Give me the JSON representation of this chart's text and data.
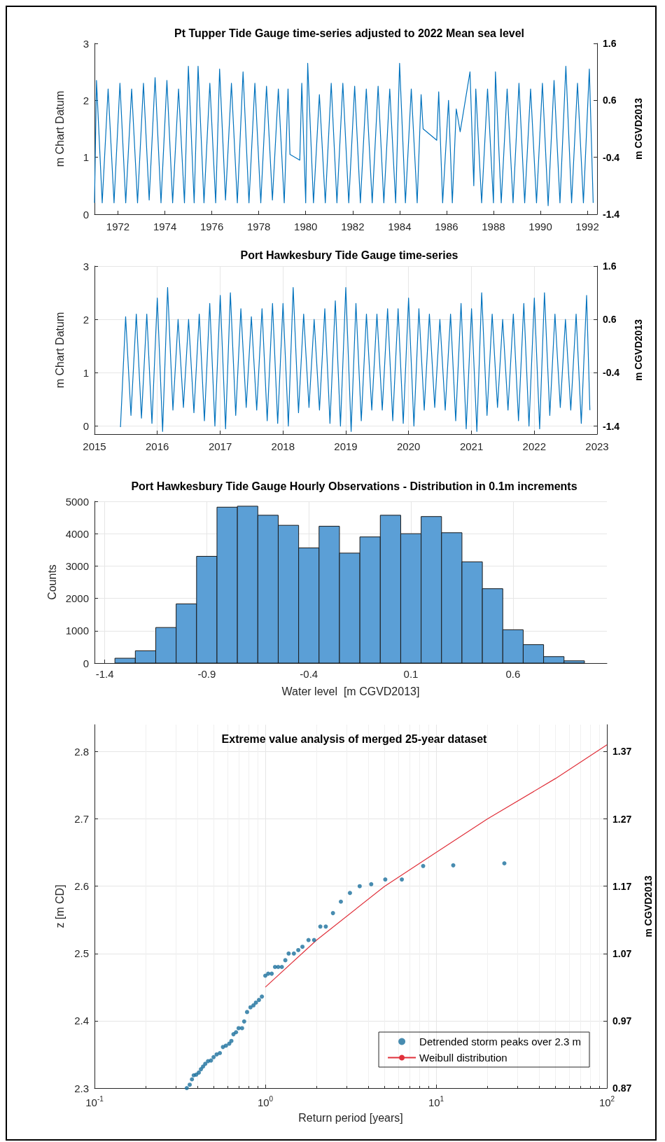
{
  "chart_data": [
    {
      "type": "line",
      "title": "Pt Tupper Tide Gauge time-series adjusted to 2022 Mean sea level",
      "ylabel": "m Chart Datum",
      "y2label": "m CGVD2013",
      "xlim": [
        "1971-01",
        "1992-06"
      ],
      "xticks": [
        "1972",
        "1974",
        "1976",
        "1978",
        "1980",
        "1982",
        "1984",
        "1986",
        "1988",
        "1990",
        "1992"
      ],
      "ylim": [
        0,
        3
      ],
      "yticks": [
        0,
        1,
        2,
        3
      ],
      "y2lim": [
        -1.4,
        1.6
      ],
      "y2ticks": [
        -1.4,
        -0.4,
        0.6,
        1.6
      ],
      "grid": false,
      "marker": "none",
      "series": [
        {
          "color": "#0072bd",
          "x": [
            "1971-01",
            "1971-02",
            "1971-05",
            "1971-08",
            "1971-11",
            "1972-02",
            "1972-05",
            "1972-08",
            "1972-11",
            "1973-02",
            "1973-05",
            "1973-08",
            "1973-11",
            "1974-02",
            "1974-05",
            "1974-08",
            "1974-11",
            "1975-01",
            "1975-04",
            "1975-06",
            "1975-09",
            "1975-12",
            "1976-03",
            "1976-05",
            "1976-08",
            "1976-11",
            "1977-02",
            "1977-05",
            "1977-08",
            "1977-11",
            "1978-02",
            "1978-05",
            "1978-08",
            "1978-11",
            "1979-02",
            "1979-04",
            "1979-05",
            "1979-10",
            "1979-11",
            "1980-01",
            "1980-02",
            "1980-05",
            "1980-08",
            "1980-11",
            "1981-02",
            "1981-05",
            "1981-08",
            "1981-11",
            "1982-02",
            "1982-05",
            "1982-08",
            "1982-11",
            "1983-02",
            "1983-05",
            "1983-08",
            "1983-11",
            "1984-01",
            "1984-04",
            "1984-07",
            "1984-10",
            "1984-12",
            "1985-01",
            "1985-08",
            "1985-09",
            "1985-11",
            "1986-02",
            "1986-04",
            "1986-06",
            "1986-08",
            "1987-01",
            "1987-03",
            "1987-04",
            "1987-07",
            "1987-10",
            "1988-01",
            "1988-02",
            "1988-05",
            "1988-08",
            "1988-11",
            "1989-02",
            "1989-05",
            "1989-08",
            "1989-11",
            "1990-02",
            "1990-05",
            "1990-08",
            "1990-11",
            "1991-02",
            "1991-05",
            "1991-08",
            "1991-11",
            "1992-02",
            "1992-04"
          ],
          "values": [
            0.2,
            2.35,
            0.2,
            2.2,
            0.2,
            2.3,
            0.2,
            2.2,
            0.2,
            2.3,
            0.25,
            2.4,
            0.2,
            2.35,
            0.2,
            2.2,
            0.2,
            2.6,
            0.2,
            2.6,
            0.2,
            2.3,
            0.2,
            2.55,
            0.25,
            2.3,
            0.2,
            2.5,
            0.2,
            2.3,
            0.2,
            2.25,
            0.25,
            2.2,
            0.2,
            2.2,
            1.05,
            0.95,
            2.3,
            0.2,
            2.65,
            0.2,
            2.1,
            0.2,
            2.3,
            0.2,
            2.3,
            0.2,
            2.25,
            0.2,
            2.2,
            0.2,
            2.25,
            0.2,
            2.2,
            0.2,
            2.65,
            0.2,
            2.2,
            0.2,
            2.1,
            1.5,
            1.3,
            2.15,
            0.2,
            2.0,
            0.2,
            1.85,
            1.45,
            2.5,
            0.5,
            2.2,
            0.2,
            2.2,
            0.2,
            2.5,
            0.2,
            2.2,
            0.2,
            2.3,
            0.2,
            2.2,
            0.2,
            2.3,
            0.15,
            2.35,
            0.2,
            2.6,
            0.2,
            2.3,
            0.2,
            2.55,
            0.2
          ]
        }
      ]
    },
    {
      "type": "line",
      "title": "Port Hawkesbury Tide Gauge time-series",
      "ylabel": "m Chart Datum",
      "y2label": "m CGVD2013",
      "xlim": [
        "2015",
        "2023"
      ],
      "xticks": [
        "2015",
        "2016",
        "2017",
        "2018",
        "2019",
        "2020",
        "2021",
        "2022",
        "2023"
      ],
      "ylim": [
        -0.15,
        3
      ],
      "yticks": [
        0,
        1,
        2,
        3
      ],
      "y2lim": [
        -1.55,
        1.6
      ],
      "y2ticks": [
        -1.4,
        -0.4,
        0.6,
        1.6
      ],
      "grid": true,
      "marker": "none",
      "series": [
        {
          "color": "#0072bd",
          "x": [
            "2015-06",
            "2015-07",
            "2015-08",
            "2015-09",
            "2015-10",
            "2015-11",
            "2015-12",
            "2016-01",
            "2016-02",
            "2016-03",
            "2016-04",
            "2016-05",
            "2016-06",
            "2016-07",
            "2016-08",
            "2016-09",
            "2016-10",
            "2016-11",
            "2016-12",
            "2017-01",
            "2017-02",
            "2017-03",
            "2017-04",
            "2017-05",
            "2017-06",
            "2017-07",
            "2017-08",
            "2017-09",
            "2017-10",
            "2017-11",
            "2017-12",
            "2018-01",
            "2018-02",
            "2018-03",
            "2018-04",
            "2018-05",
            "2018-06",
            "2018-07",
            "2018-08",
            "2018-09",
            "2018-10",
            "2018-11",
            "2018-12",
            "2019-01",
            "2019-02",
            "2019-03",
            "2019-04",
            "2019-05",
            "2019-06",
            "2019-07",
            "2019-08",
            "2019-09",
            "2019-10",
            "2019-11",
            "2019-12",
            "2020-01",
            "2020-02",
            "2020-03",
            "2020-04",
            "2020-05",
            "2020-06",
            "2020-07",
            "2020-08",
            "2020-09",
            "2020-10",
            "2020-11",
            "2020-12",
            "2021-01",
            "2021-02",
            "2021-03",
            "2021-04",
            "2021-05",
            "2021-06",
            "2021-07",
            "2021-08",
            "2021-09",
            "2021-10",
            "2021-11",
            "2021-12",
            "2022-01",
            "2022-02",
            "2022-03",
            "2022-04",
            "2022-05",
            "2022-06",
            "2022-07",
            "2022-08",
            "2022-09",
            "2022-10",
            "2022-11",
            "2022-11-20"
          ],
          "values": [
            -0.02,
            2.05,
            0.2,
            2.1,
            0.15,
            2.1,
            0.05,
            2.4,
            -0.1,
            2.6,
            0.3,
            2.0,
            0.35,
            2.0,
            0.25,
            2.1,
            0.1,
            2.3,
            0.0,
            2.45,
            -0.05,
            2.5,
            0.2,
            2.2,
            0.35,
            2.05,
            0.3,
            2.2,
            0.1,
            2.3,
            0.05,
            2.3,
            0.0,
            2.6,
            0.25,
            2.1,
            0.35,
            2.0,
            0.3,
            2.2,
            0.05,
            2.35,
            0.0,
            2.6,
            -0.1,
            2.3,
            0.1,
            2.1,
            0.3,
            2.1,
            0.3,
            2.2,
            0.1,
            2.2,
            0.05,
            2.4,
            0.0,
            2.2,
            0.3,
            2.1,
            0.35,
            2.0,
            0.3,
            2.1,
            0.1,
            2.3,
            -0.05,
            2.2,
            -0.1,
            2.5,
            0.2,
            2.1,
            0.35,
            2.0,
            0.3,
            2.1,
            0.1,
            2.3,
            0.0,
            2.4,
            -0.05,
            2.5,
            0.2,
            2.1,
            0.35,
            2.0,
            0.3,
            2.1,
            0.05,
            2.45,
            0.3
          ]
        }
      ]
    },
    {
      "type": "histogram",
      "title": "Port Hawkesbury Tide Gauge Hourly Observations - Distribution in 0.1m increments",
      "xlabel": "Water level  [m CGVD2013]",
      "ylabel": "Counts",
      "color": "#5b9fd6",
      "grid": true,
      "bins": [
        -1.35,
        -1.25,
        -1.15,
        -1.05,
        -0.95,
        -0.85,
        -0.75,
        -0.65,
        -0.55,
        -0.45,
        -0.35,
        -0.25,
        -0.15,
        -0.05,
        0.05,
        0.15,
        0.25,
        0.35,
        0.45,
        0.55,
        0.65,
        0.75,
        0.85,
        0.95
      ],
      "values": [
        150,
        380,
        1100,
        1830,
        3300,
        4820,
        4850,
        4570,
        4260,
        3560,
        4230,
        3400,
        3900,
        4570,
        4000,
        4530,
        4030,
        3130,
        2300,
        1030,
        570,
        200,
        70
      ],
      "xlim": [
        -1.45,
        1.06
      ],
      "xticks": [
        -1.4,
        -0.9,
        -0.4,
        0.1,
        0.6
      ],
      "ylim": [
        0,
        5000
      ],
      "yticks": [
        0,
        1000,
        2000,
        3000,
        4000,
        5000
      ]
    },
    {
      "type": "scatter",
      "title": "Extreme value analysis of merged 25-year dataset",
      "xlabel": "Return period [years]",
      "ylabel": "z [m CD]",
      "y2label": "m CGVD2013",
      "log": "x",
      "grid": true,
      "legend": "bottom right",
      "xlim": [
        0.1,
        100
      ],
      "xticks": [
        {
          "value": 0.1,
          "label": "10$^{-1}$"
        },
        {
          "value": 1,
          "label": "10$^{0}$"
        },
        {
          "value": 10,
          "label": "10$^{1}$"
        },
        {
          "value": 100,
          "label": "10$^{2}$"
        }
      ],
      "ylim": [
        2.3,
        2.84
      ],
      "yticks": [
        2.3,
        2.4,
        2.5,
        2.6,
        2.7,
        2.8
      ],
      "y2lim": [
        0.87,
        1.41
      ],
      "y2ticks": [
        0.87,
        0.97,
        1.07,
        1.17,
        1.27,
        1.37
      ],
      "series": [
        {
          "name": "Detrended storm peaks over 2.3 m",
          "type": "scatter",
          "marker": "circle",
          "color": "#1a6f9c",
          "x": [
            0.347,
            0.361,
            0.372,
            0.381,
            0.394,
            0.408,
            0.42,
            0.432,
            0.445,
            0.462,
            0.481,
            0.498,
            0.519,
            0.542,
            0.565,
            0.588,
            0.615,
            0.633,
            0.651,
            0.674,
            0.698,
            0.731,
            0.752,
            0.782,
            0.819,
            0.853,
            0.881,
            0.918,
            0.955,
            1.0,
            1.04,
            1.09,
            1.14,
            1.19,
            1.25,
            1.31,
            1.37,
            1.47,
            1.56,
            1.65,
            1.79,
            1.93,
            2.1,
            2.26,
            2.49,
            2.77,
            3.13,
            3.57,
            4.17,
            5.04,
            6.3,
            8.4,
            12.6,
            25.1
          ],
          "values": [
            2.3,
            2.305,
            2.313,
            2.319,
            2.32,
            2.323,
            2.328,
            2.332,
            2.336,
            2.34,
            2.341,
            2.346,
            2.35,
            2.352,
            2.361,
            2.363,
            2.366,
            2.37,
            2.38,
            2.383,
            2.389,
            2.389,
            2.399,
            2.413,
            2.42,
            2.423,
            2.427,
            2.431,
            2.436,
            2.467,
            2.47,
            2.47,
            2.48,
            2.48,
            2.48,
            2.49,
            2.5,
            2.5,
            2.505,
            2.51,
            2.52,
            2.52,
            2.54,
            2.54,
            2.56,
            2.577,
            2.59,
            2.6,
            2.603,
            2.61,
            2.61,
            2.63,
            2.631,
            2.634
          ]
        },
        {
          "name": "Weibull distribution",
          "type": "line",
          "marker": "none",
          "color": "#e0303a",
          "x": [
            1,
            2,
            5,
            10,
            20,
            50,
            100
          ],
          "values": [
            2.45,
            2.52,
            2.6,
            2.65,
            2.7,
            2.76,
            2.81
          ]
        }
      ]
    }
  ]
}
